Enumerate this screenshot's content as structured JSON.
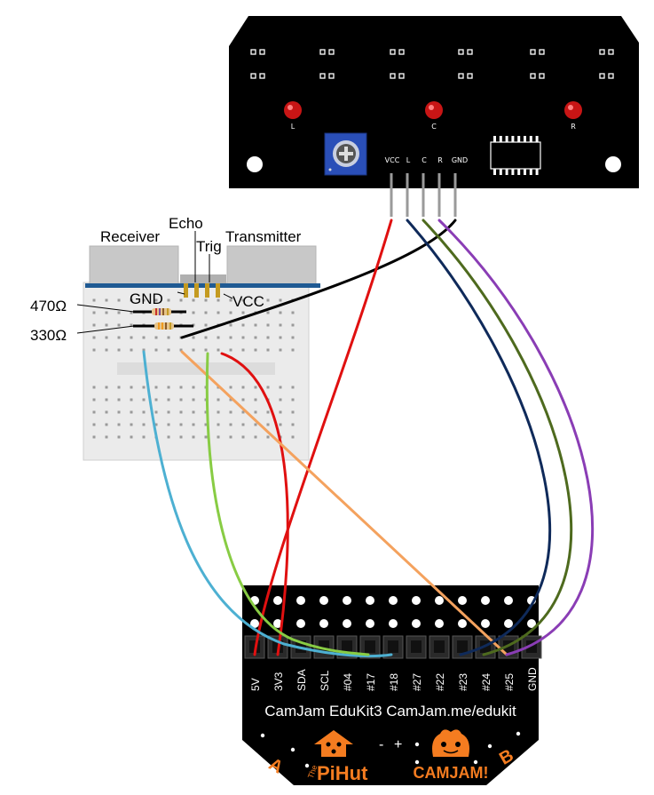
{
  "colors": {
    "board": "#000000",
    "breadboard": "#ebebeb",
    "blue_rail": "#1f5a93",
    "wire_red": "#e01010",
    "wire_black": "#000000",
    "wire_navy": "#0f2a5a",
    "wire_olive": "#4e6a1e",
    "wire_purple": "#8a3db5",
    "wire_cyan": "#4db0d2",
    "wire_lime": "#88cc44",
    "wire_orange": "#f4a25e",
    "accent_orange": "#f47c20"
  },
  "line_sensor": {
    "led_labels": [
      "L",
      "C",
      "R"
    ],
    "pin_labels": [
      "VCC",
      "L",
      "C",
      "R",
      "GND"
    ]
  },
  "ultrasonic": {
    "receiver": "Receiver",
    "echo": "Echo",
    "trig": "Trig",
    "transmitter": "Transmitter",
    "gnd": "GND",
    "vcc": "VCC"
  },
  "resistors": {
    "r1": "470Ω",
    "r2": "330Ω"
  },
  "camjam": {
    "pin_labels": [
      "5V",
      "3V3",
      "SDA",
      "SCL",
      "#04",
      "#17",
      "#18",
      "#27",
      "#22",
      "#23",
      "#24",
      "#25",
      "GND"
    ],
    "title": "CamJam EduKit3 CamJam.me/edukit",
    "corner_a": "A",
    "corner_b": "B",
    "minus": "-",
    "plus": "+",
    "pihut_prefix": "The",
    "pihut_name": "PiHut",
    "camjam_logo": "CAMJAM!"
  }
}
